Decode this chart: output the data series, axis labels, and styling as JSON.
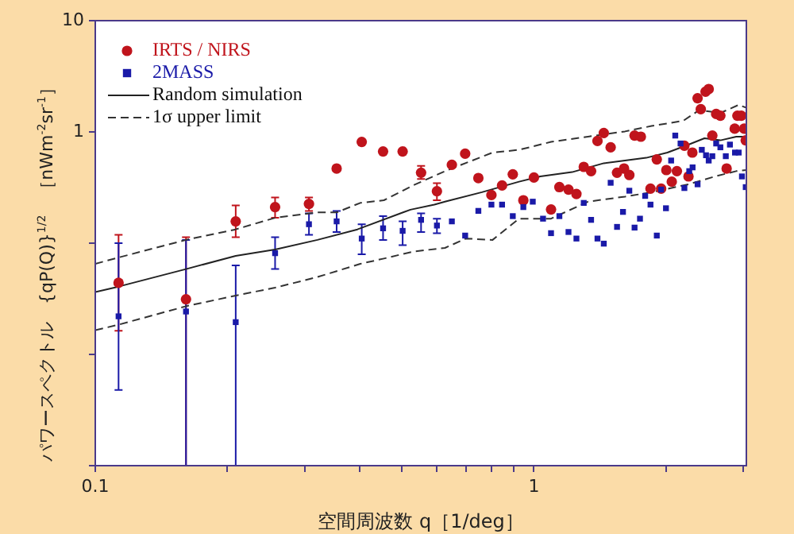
{
  "chart_data": {
    "type": "scatter",
    "xlabel": "空間周波数 q［1/deg］",
    "ylabel": "パワースペクトル　{qP(Q)}$^{1/2}$　［nWm$^{-2}$sr$^{-1}$］",
    "log": "xy",
    "xlim": [
      0.1,
      3.05
    ],
    "ylim": [
      0.001,
      10
    ],
    "xticks": [
      0.1,
      {
        "value": 0.2,
        "label": null
      },
      {
        "value": 0.3,
        "label": null
      },
      {
        "value": 0.4,
        "label": null
      },
      {
        "value": 0.5,
        "label": null
      },
      {
        "value": 0.6,
        "label": null
      },
      {
        "value": 0.7,
        "label": null
      },
      {
        "value": 0.8,
        "label": null
      },
      {
        "value": 0.9,
        "label": null
      },
      1,
      {
        "value": 2,
        "label": null
      },
      {
        "value": 3,
        "label": null
      }
    ],
    "yticks": [
      {
        "value": 0.001,
        "label": null
      },
      {
        "value": 0.01,
        "label": null
      },
      {
        "value": 0.1,
        "label": null
      },
      1,
      10
    ],
    "grid": false,
    "legend": "top left",
    "series": [
      {
        "name": "IRTS / NIRS",
        "marker": "circle",
        "color": "#c0141c",
        "x": [
          0.113,
          0.161,
          0.209,
          0.257,
          0.307,
          0.355,
          0.405,
          0.453,
          0.502,
          0.553,
          0.601,
          0.65,
          0.697,
          0.747,
          0.8,
          0.846,
          0.895,
          0.946,
          1.0,
          1.094,
          1.143,
          1.199,
          1.25,
          1.299,
          1.35,
          1.396,
          1.443,
          1.496,
          1.547,
          1.605,
          1.65,
          1.696,
          1.753,
          1.844,
          1.906,
          1.95,
          2.004,
          2.062,
          2.118,
          2.203,
          2.251,
          2.297,
          2.361,
          2.401,
          2.462,
          2.503,
          2.551,
          2.603,
          2.661,
          2.75,
          2.869,
          2.91,
          2.97,
          3.015,
          3.04
        ],
        "values": [
          0.044,
          0.0313,
          0.157,
          0.211,
          0.225,
          0.469,
          0.813,
          0.667,
          0.667,
          0.43,
          0.293,
          0.506,
          0.637,
          0.385,
          0.271,
          0.33,
          0.416,
          0.243,
          0.389,
          0.201,
          0.319,
          0.303,
          0.277,
          0.485,
          0.444,
          0.829,
          0.977,
          0.727,
          0.43,
          0.469,
          0.41,
          0.927,
          0.906,
          0.309,
          0.566,
          0.309,
          0.454,
          0.357,
          0.444,
          0.751,
          0.398,
          0.652,
          2.01,
          1.6,
          2.3,
          2.43,
          0.927,
          1.45,
          1.4,
          0.469,
          1.07,
          1.4,
          1.4,
          1.07,
          0.84
        ],
        "errors": [
          [
            0.0163,
            0.119
          ],
          [
            0.001,
            0.113
          ],
          [
            0.113,
            0.218
          ],
          [
            0.169,
            0.257
          ],
          [
            0.195,
            0.257
          ],
          null,
          null,
          null,
          null,
          [
            0.377,
            0.496
          ],
          [
            0.243,
            0.346
          ],
          null,
          null,
          null,
          null,
          null,
          null,
          null,
          null,
          null,
          null,
          null,
          null,
          null,
          null,
          null,
          null,
          null,
          null,
          null,
          null,
          null,
          null,
          null,
          null,
          null,
          null,
          null,
          null,
          null,
          null,
          null,
          null,
          null,
          null,
          null,
          null,
          null,
          null,
          null,
          null,
          null,
          null,
          null,
          null
        ]
      },
      {
        "name": "2MASS",
        "marker": "square",
        "color": "#1a1aa8",
        "x": [
          0.113,
          0.161,
          0.209,
          0.257,
          0.307,
          0.355,
          0.405,
          0.453,
          0.502,
          0.553,
          0.601,
          0.65,
          0.697,
          0.747,
          0.8,
          0.846,
          0.895,
          0.946,
          0.994,
          1.049,
          1.094,
          1.143,
          1.199,
          1.25,
          1.299,
          1.35,
          1.396,
          1.443,
          1.496,
          1.547,
          1.596,
          1.65,
          1.696,
          1.745,
          1.793,
          1.844,
          1.906,
          1.95,
          2.0,
          2.055,
          2.1,
          2.159,
          2.203,
          2.26,
          2.3,
          2.361,
          2.414,
          2.468,
          2.503,
          2.551,
          2.603,
          2.661,
          2.738,
          2.798,
          2.873,
          2.93,
          2.98,
          3.04
        ],
        "values": [
          0.022,
          0.0243,
          0.0195,
          0.0813,
          0.148,
          0.157,
          0.11,
          0.136,
          0.129,
          0.162,
          0.144,
          0.157,
          0.117,
          0.195,
          0.222,
          0.222,
          0.175,
          0.211,
          0.236,
          0.166,
          0.123,
          0.175,
          0.126,
          0.11,
          0.23,
          0.162,
          0.11,
          0.099,
          0.349,
          0.14,
          0.191,
          0.296,
          0.138,
          0.166,
          0.266,
          0.222,
          0.117,
          0.303,
          0.206,
          0.553,
          0.927,
          0.787,
          0.313,
          0.444,
          0.48,
          0.338,
          0.69,
          0.617,
          0.553,
          0.605,
          0.787,
          0.727,
          0.605,
          0.769,
          0.652,
          0.652,
          0.398,
          0.319
        ],
        "errors": [
          [
            0.0048,
            0.1
          ],
          [
            0.001,
            0.107
          ],
          [
            0.001,
            0.0631
          ],
          [
            0.0585,
            0.113
          ],
          [
            0.119,
            0.185
          ],
          [
            0.126,
            0.195
          ],
          [
            0.0794,
            0.148
          ],
          [
            0.107,
            0.175
          ],
          [
            0.0958,
            0.157
          ],
          [
            0.126,
            0.185
          ],
          [
            0.123,
            0.166
          ],
          null,
          null,
          null,
          null,
          null,
          null,
          null,
          null,
          null,
          null,
          null,
          null,
          null,
          null,
          null,
          null,
          null,
          null,
          null,
          null,
          null,
          null,
          null,
          null,
          null,
          null,
          null,
          null,
          null,
          null,
          null,
          null,
          null,
          null,
          null,
          null,
          null,
          null,
          null,
          null,
          null,
          null,
          null,
          null,
          null,
          null,
          null
        ]
      },
      {
        "name": "Random simulation",
        "type": "line",
        "line_style": "solid",
        "color": "#222222",
        "x": [
          0.1,
          0.113,
          0.161,
          0.209,
          0.257,
          0.321,
          0.396,
          0.523,
          0.593,
          0.627,
          0.761,
          0.925,
          1.034,
          1.222,
          1.443,
          1.613,
          1.803,
          2.015,
          2.251,
          2.448,
          2.661,
          2.892,
          3.05
        ],
        "values": [
          0.0364,
          0.0407,
          0.0585,
          0.0769,
          0.0877,
          0.107,
          0.133,
          0.2,
          0.222,
          0.236,
          0.287,
          0.357,
          0.398,
          0.435,
          0.523,
          0.553,
          0.585,
          0.652,
          0.769,
          0.877,
          0.84,
          0.906,
          0.906
        ]
      },
      {
        "name": "1σ upper limit",
        "type": "line",
        "line_style": "dashed",
        "color": "#333333",
        "x": [
          0.1,
          0.113,
          0.161,
          0.209,
          0.257,
          0.321,
          0.355,
          0.402,
          0.455,
          0.53,
          0.627,
          0.805,
          0.925,
          1.094,
          1.328,
          1.613,
          1.854,
          2.191,
          2.381,
          2.661,
          2.93,
          3.05
        ],
        "values": [
          0.0652,
          0.0743,
          0.107,
          0.133,
          0.169,
          0.189,
          0.189,
          0.23,
          0.243,
          0.33,
          0.444,
          0.652,
          0.69,
          0.813,
          0.906,
          1.01,
          1.13,
          1.26,
          1.57,
          1.48,
          1.75,
          1.65
        ]
      },
      {
        "type": "line",
        "line_style": "dashed",
        "color": "#333333",
        "x": [
          0.1,
          0.113,
          0.161,
          0.209,
          0.257,
          0.321,
          0.402,
          0.455,
          0.53,
          0.627,
          0.7,
          0.805,
          0.925,
          1.094,
          1.328,
          1.613,
          1.854,
          2.251,
          2.588,
          2.892,
          3.05
        ],
        "values": [
          0.0165,
          0.0185,
          0.0271,
          0.0338,
          0.0398,
          0.0496,
          0.0652,
          0.0727,
          0.084,
          0.0906,
          0.11,
          0.107,
          0.166,
          0.166,
          0.236,
          0.262,
          0.287,
          0.338,
          0.398,
          0.444,
          0.454
        ]
      }
    ]
  }
}
